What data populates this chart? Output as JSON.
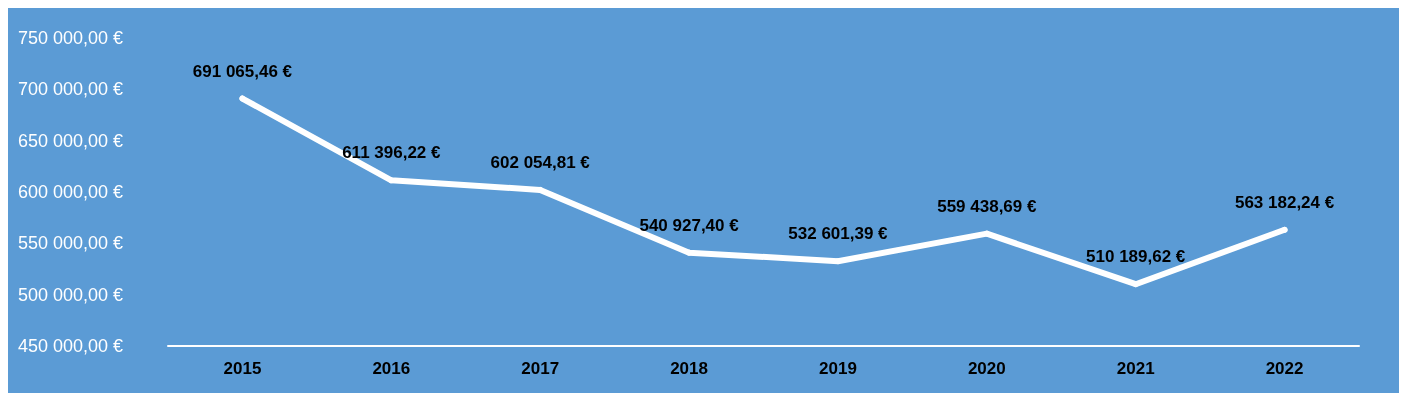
{
  "chart_data": {
    "type": "line",
    "categories": [
      "2015",
      "2016",
      "2017",
      "2018",
      "2019",
      "2020",
      "2021",
      "2022"
    ],
    "series": [
      {
        "color": "#ffffff",
        "values": [
          691065.46,
          611396.22,
          602054.81,
          540927.4,
          532601.39,
          559438.69,
          510189.62,
          563182.24
        ],
        "value_labels": [
          "691 065,46 €",
          "611 396,22 €",
          "602 054,81 €",
          "540 927,40 €",
          "532 601,39 €",
          "559 438,69 €",
          "510 189,62 €",
          "563 182,24 €"
        ]
      }
    ],
    "ylim": [
      450000,
      750000
    ],
    "yticks": [
      {
        "value": 450000,
        "label": "450 000,00 €"
      },
      {
        "value": 500000,
        "label": "500 000,00 €"
      },
      {
        "value": 550000,
        "label": "550 000,00 €"
      },
      {
        "value": 600000,
        "label": "600 000,00 €"
      },
      {
        "value": 650000,
        "label": "650 000,00 €"
      },
      {
        "value": 700000,
        "label": "700 000,00 €"
      },
      {
        "value": 750000,
        "label": "750 000,00 €"
      }
    ],
    "grid": false,
    "marker": "circle",
    "line_style": "solid"
  }
}
